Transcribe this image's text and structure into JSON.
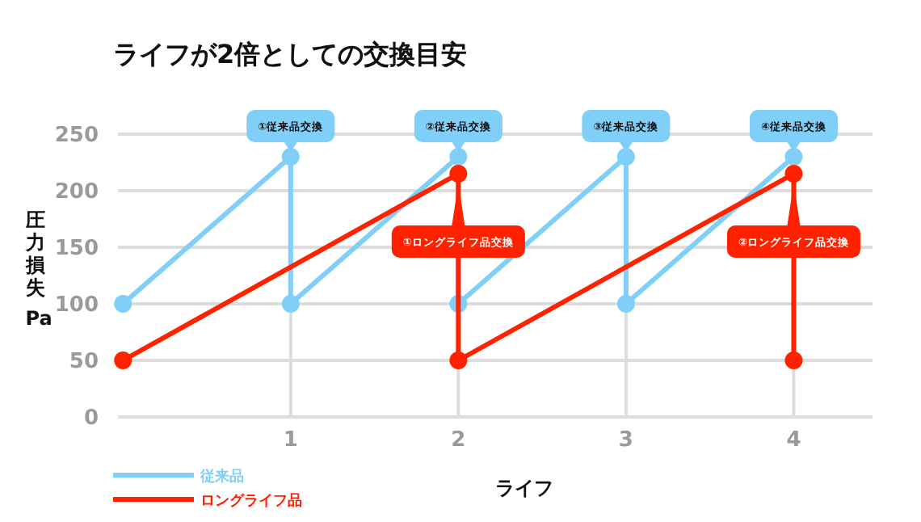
{
  "chart_data": {
    "type": "line",
    "title": "ライフが2倍としての交換目安",
    "xlabel": "ライフ",
    "ylabel": "圧力損失 Pa",
    "xlim": [
      -0.03,
      4.47
    ],
    "xticks": [
      1,
      2,
      3,
      4
    ],
    "ylim": [
      0,
      250
    ],
    "yticks": [
      0,
      50,
      100,
      150,
      200,
      250
    ],
    "grid": true,
    "legend": "bottom",
    "marker": "circle",
    "line_style": "solid",
    "series": [
      {
        "name": "従来品",
        "color": "#80cff8",
        "x": [
          0,
          1,
          1,
          2,
          2,
          3,
          3,
          4
        ],
        "values": [
          100,
          230,
          100,
          230,
          100,
          230,
          100,
          230
        ]
      },
      {
        "name": "ロングライフ品",
        "color": "#ff2200",
        "x": [
          0,
          2,
          2,
          4,
          4
        ],
        "values": [
          50,
          215,
          50,
          215,
          50
        ]
      }
    ],
    "annotations": [
      {
        "text": "①従来品交換",
        "x": 1,
        "y": 230
      },
      {
        "text": "②従来品交換",
        "x": 2,
        "y": 230
      },
      {
        "text": "③従来品交換",
        "x": 3,
        "y": 230
      },
      {
        "text": "④従来品交換",
        "x": 4,
        "y": 230
      },
      {
        "text": "①ロングライフ品交換",
        "x": 2,
        "y": 215
      },
      {
        "text": "②ロングライフ品交換",
        "x": 4,
        "y": 215
      }
    ]
  }
}
